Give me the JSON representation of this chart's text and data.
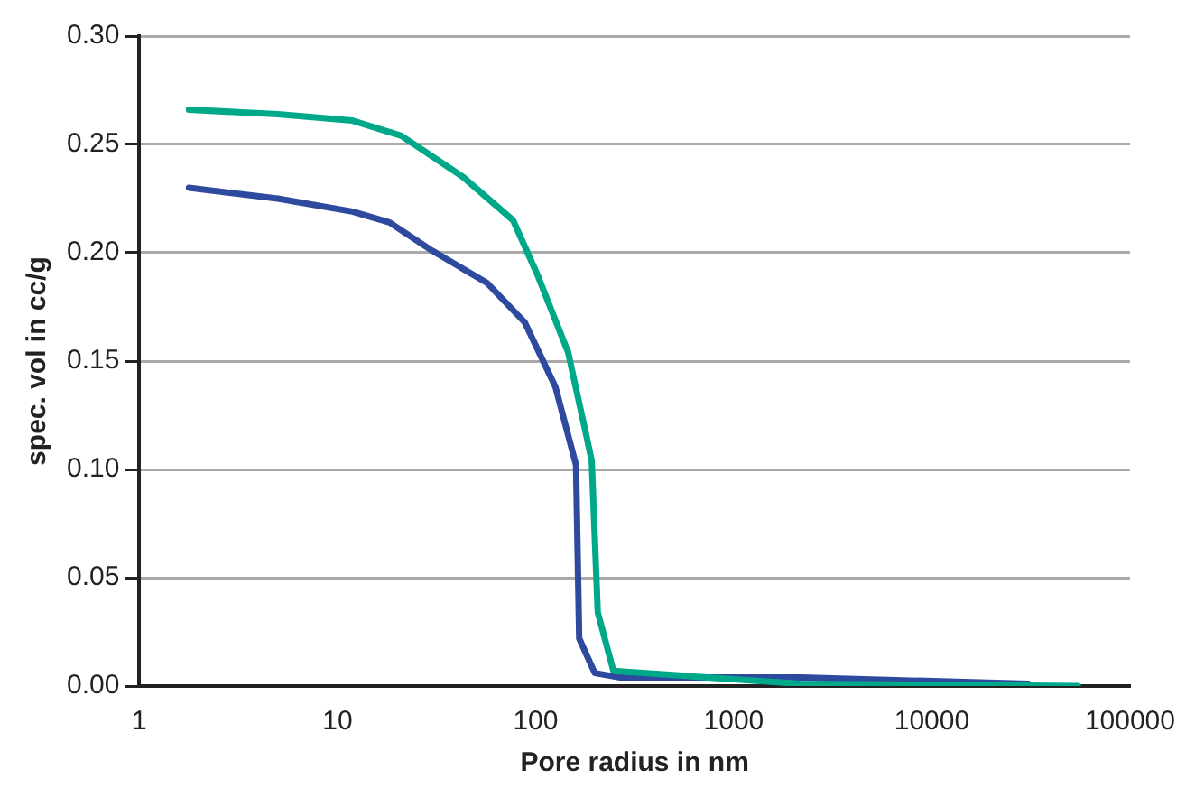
{
  "chart_data": {
    "type": "line",
    "xlabel": "Pore radius in nm",
    "ylabel": "spec. vol in cc/g",
    "log": "x",
    "xlim": [
      1,
      100000
    ],
    "xticks": [
      1,
      10,
      100,
      1000,
      10000,
      100000
    ],
    "ylim": [
      0,
      0.3
    ],
    "yticks": [
      {
        "value": 0,
        "label": "0.00"
      },
      {
        "value": 0.05,
        "label": "0.05"
      },
      {
        "value": 0.1,
        "label": "0.10"
      },
      {
        "value": 0.15,
        "label": "0.15"
      },
      {
        "value": 0.2,
        "label": "0.20"
      },
      {
        "value": 0.25,
        "label": "0.25"
      },
      {
        "value": 0.3,
        "label": "0.30"
      }
    ],
    "grid": "y",
    "legend": false,
    "marker": "none",
    "line_style": "solid",
    "series": [
      {
        "color": "#00a88a",
        "x": [
          1.78,
          5,
          11.9,
          21,
          43,
          77,
          102,
          146,
          181,
          192,
          206,
          247,
          2180,
          54600
        ],
        "values": [
          0.266,
          0.264,
          0.261,
          0.254,
          0.235,
          0.215,
          0.19,
          0.154,
          0.115,
          0.104,
          0.034,
          0.007,
          0.001,
          0
        ]
      },
      {
        "color": "#2e4a9e",
        "x": [
          1.78,
          5,
          11.9,
          18.3,
          30,
          57,
          88,
          126,
          160,
          166,
          199,
          264,
          2180,
          30700
        ],
        "values": [
          0.23,
          0.225,
          0.219,
          0.214,
          0.201,
          0.186,
          0.168,
          0.138,
          0.102,
          0.022,
          0.006,
          0.004,
          0.004,
          0.001
        ]
      }
    ]
  }
}
